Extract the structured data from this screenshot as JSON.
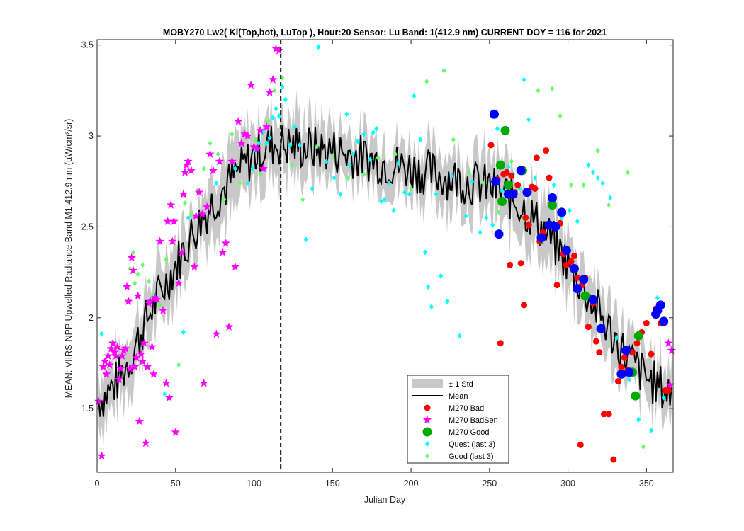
{
  "chart_data": {
    "type": "scatter",
    "title": "MOBY270   Lw2( Kl(Top,bot), LuTop ),   Hour:20 Sensor: Lu Band: 1(412.9 nm)   CURRENT DOY = 116 for 2021",
    "xlabel": "Julian Day",
    "ylabel": "MEAN: VIIRS-NPP Upwelled Radiance Band M1 412.9 nm (µW/cm²/sr)",
    "xlim": [
      0,
      367
    ],
    "ylim": [
      1.15,
      3.53
    ],
    "xticks": [
      0,
      50,
      100,
      150,
      200,
      250,
      300,
      350
    ],
    "yticks": [
      1.5,
      2,
      2.5,
      3,
      3.5
    ],
    "xtick_labels": [
      "0",
      "50",
      "100",
      "150",
      "200",
      "250",
      "300",
      "350"
    ],
    "ytick_labels": [
      "1.5",
      "2",
      "2.5",
      "3",
      "3.5"
    ],
    "grid": false,
    "legend_position": "bottom-center",
    "current_doy_line": 117,
    "colors": {
      "std_band": "#c8c8c8",
      "mean_line": "#000000",
      "bad": "#ff0000",
      "badsen": "#ff00ff",
      "good": "#00aa00",
      "quest_last3": "#00ffff",
      "good_last3": "#66ff66",
      "recent": "#0000ff"
    },
    "mean_profile": [
      [
        1,
        1.55
      ],
      [
        5,
        1.57
      ],
      [
        10,
        1.62
      ],
      [
        15,
        1.68
      ],
      [
        20,
        1.76
      ],
      [
        25,
        1.86
      ],
      [
        30,
        1.96
      ],
      [
        35,
        2.05
      ],
      [
        40,
        2.13
      ],
      [
        45,
        2.21
      ],
      [
        50,
        2.29
      ],
      [
        55,
        2.37
      ],
      [
        60,
        2.45
      ],
      [
        65,
        2.52
      ],
      [
        70,
        2.59
      ],
      [
        75,
        2.65
      ],
      [
        80,
        2.7
      ],
      [
        85,
        2.75
      ],
      [
        90,
        2.8
      ],
      [
        95,
        2.85
      ],
      [
        100,
        2.89
      ],
      [
        105,
        2.92
      ],
      [
        110,
        2.95
      ],
      [
        115,
        2.96
      ],
      [
        120,
        2.95
      ],
      [
        130,
        2.94
      ],
      [
        140,
        2.93
      ],
      [
        150,
        2.92
      ],
      [
        160,
        2.9
      ],
      [
        170,
        2.88
      ],
      [
        180,
        2.86
      ],
      [
        190,
        2.84
      ],
      [
        200,
        2.82
      ],
      [
        210,
        2.8
      ],
      [
        220,
        2.78
      ],
      [
        230,
        2.76
      ],
      [
        240,
        2.74
      ],
      [
        250,
        2.72
      ],
      [
        260,
        2.68
      ],
      [
        270,
        2.62
      ],
      [
        280,
        2.53
      ],
      [
        290,
        2.42
      ],
      [
        300,
        2.3
      ],
      [
        310,
        2.16
      ],
      [
        320,
        2.02
      ],
      [
        330,
        1.88
      ],
      [
        340,
        1.76
      ],
      [
        350,
        1.67
      ],
      [
        360,
        1.61
      ],
      [
        366,
        1.58
      ]
    ],
    "std_profile": [
      [
        1,
        0.14
      ],
      [
        30,
        0.15
      ],
      [
        60,
        0.15
      ],
      [
        90,
        0.17
      ],
      [
        110,
        0.18
      ],
      [
        130,
        0.16
      ],
      [
        150,
        0.14
      ],
      [
        170,
        0.13
      ],
      [
        200,
        0.13
      ],
      [
        230,
        0.15
      ],
      [
        250,
        0.17
      ],
      [
        270,
        0.17
      ],
      [
        290,
        0.16
      ],
      [
        310,
        0.16
      ],
      [
        330,
        0.15
      ],
      [
        350,
        0.14
      ],
      [
        366,
        0.14
      ]
    ],
    "series": [
      {
        "name": "M270 Bad",
        "marker": "circle-red",
        "x": [
          251,
          255,
          257,
          259,
          261,
          263,
          264,
          266,
          268,
          270,
          272,
          273,
          275,
          277,
          279,
          280,
          282,
          284,
          286,
          288,
          290,
          293,
          295,
          297,
          299,
          302,
          304,
          306,
          308,
          309,
          311,
          313,
          316,
          318,
          320,
          323,
          326,
          329,
          332,
          334,
          336,
          338,
          341,
          344,
          347,
          350,
          353,
          356,
          359,
          362,
          364
        ],
        "y": [
          2.95,
          2.76,
          1.86,
          2.79,
          2.8,
          2.29,
          2.78,
          2.69,
          2.73,
          2.3,
          2.07,
          2.55,
          2.51,
          2.72,
          2.71,
          2.88,
          2.42,
          2.47,
          2.92,
          2.77,
          2.63,
          2.18,
          2.52,
          2.35,
          2.29,
          2.31,
          2.34,
          2.22,
          1.3,
          2.18,
          2.22,
          1.95,
          2.08,
          1.87,
          1.81,
          1.47,
          1.47,
          1.22,
          1.65,
          1.73,
          1.78,
          1.71,
          1.81,
          1.86,
          1.92,
          1.97,
          1.8,
          2.05,
          1.97,
          1.6,
          1.6
        ]
      },
      {
        "name": "M270 BadSen",
        "marker": "star-magenta",
        "x": [
          1,
          3,
          4,
          5,
          6,
          7,
          8,
          9,
          10,
          11,
          12,
          13,
          14,
          15,
          16,
          17,
          18,
          19,
          20,
          21,
          22,
          23,
          24,
          25,
          26,
          27,
          28,
          29,
          30,
          31,
          32,
          33,
          34,
          35,
          36,
          37,
          38,
          40,
          42,
          44,
          45,
          46,
          47,
          48,
          49,
          50,
          52,
          54,
          55,
          56,
          57,
          58,
          60,
          62,
          63,
          65,
          67,
          68,
          70,
          72,
          74,
          76,
          78,
          80,
          82,
          84,
          86,
          88,
          90,
          92,
          94,
          96,
          98,
          100,
          102,
          104,
          106,
          108,
          110,
          112,
          114,
          116,
          364,
          365,
          366
        ],
        "y": [
          1.54,
          1.24,
          1.73,
          1.76,
          1.69,
          1.79,
          1.74,
          1.83,
          1.86,
          1.81,
          1.79,
          1.84,
          1.66,
          1.72,
          1.79,
          1.82,
          1.83,
          2.17,
          2.09,
          1.72,
          2.33,
          2.26,
          1.73,
          1.78,
          2.12,
          1.43,
          1.8,
          1.76,
          1.86,
          1.31,
          1.73,
          2.08,
          2.09,
          1.84,
          1.69,
          2.11,
          2.1,
          2.42,
          2.04,
          1.64,
          2.53,
          1.56,
          2.62,
          2.42,
          2.53,
          1.37,
          2.19,
          2.36,
          2.68,
          2.8,
          2.84,
          2.86,
          2.81,
          2.28,
          2.56,
          2.69,
          2.57,
          1.64,
          2.61,
          2.9,
          2.81,
          1.91,
          2.86,
          2.36,
          2.41,
          1.95,
          2.86,
          2.28,
          3.08,
          2.96,
          3.01,
          3.0,
          3.28,
          2.94,
          2.93,
          3.03,
          2.82,
          3.05,
          3.24,
          3.31,
          3.48,
          3.47,
          1.86,
          1.63,
          1.82
        ]
      },
      {
        "name": "M270 Good",
        "marker": "circle-green",
        "x": [
          257,
          258,
          260,
          262,
          271,
          290,
          311,
          341,
          343,
          345
        ],
        "y": [
          2.84,
          2.64,
          3.03,
          2.73,
          2.81,
          2.62,
          2.12,
          1.7,
          1.57,
          1.9
        ]
      },
      {
        "name": "Quest (last 3)",
        "marker": "diamond-cyan",
        "x": [
          3,
          43,
          55,
          58,
          76,
          88,
          96,
          99,
          101,
          103,
          106,
          108,
          110,
          112,
          114,
          116,
          118,
          120,
          123,
          126,
          129,
          133,
          137,
          141,
          146,
          151,
          155,
          159,
          161,
          163,
          166,
          170,
          174,
          176,
          178,
          181,
          183,
          186,
          189,
          192,
          196,
          199,
          202,
          206,
          209,
          211,
          213,
          216,
          219,
          223,
          226,
          231,
          235,
          239,
          244,
          248,
          252,
          255,
          258,
          262,
          265,
          269,
          272,
          275,
          279,
          284,
          291,
          296,
          301,
          306,
          313,
          316,
          319,
          322,
          327,
          331,
          339,
          345,
          353,
          357,
          361
        ],
        "y": [
          1.91,
          1.58,
          1.92,
          2.55,
          2.74,
          2.82,
          2.74,
          2.82,
          2.92,
          2.96,
          3.02,
          2.96,
          2.99,
          3.1,
          3.15,
          3.11,
          3.27,
          3.2,
          2.95,
          3.05,
          2.95,
          2.43,
          2.71,
          3.49,
          2.86,
          2.77,
          2.68,
          3.12,
          2.84,
          2.9,
          2.97,
          3.01,
          2.87,
          3.02,
          3.04,
          2.64,
          2.65,
          2.74,
          2.59,
          2.85,
          2.69,
          2.68,
          3.22,
          2.98,
          2.36,
          2.17,
          2.06,
          2.68,
          2.23,
          2.09,
          2.78,
          1.9,
          2.56,
          2.75,
          2.47,
          2.55,
          2.51,
          3.04,
          2.7,
          2.83,
          2.79,
          2.71,
          3.31,
          3.09,
          2.77,
          2.42,
          2.73,
          2.55,
          2.59,
          2.53,
          2.84,
          2.8,
          2.77,
          2.74,
          2.66,
          1.89,
          1.66,
          1.44,
          1.38,
          2.11,
          1.56
        ]
      },
      {
        "name": "Good (last 3)",
        "marker": "diamond-green",
        "x": [
          21,
          23,
          24,
          26,
          29,
          33,
          36,
          40,
          44,
          52,
          56,
          60,
          64,
          68,
          72,
          77,
          81,
          86,
          91,
          96,
          101,
          104,
          109,
          113,
          118,
          124,
          131,
          140,
          150,
          160,
          170,
          179,
          190,
          200,
          210,
          221,
          227,
          237,
          246,
          256,
          264,
          272,
          281,
          290,
          295,
          302,
          310,
          319,
          326,
          338,
          348
        ],
        "y": [
          2.27,
          2.36,
          2.19,
          2.24,
          2.29,
          2.2,
          2.13,
          2.07,
          2.32,
          1.74,
          2.63,
          2.57,
          2.7,
          2.82,
          2.96,
          2.9,
          2.65,
          3.01,
          2.74,
          3.0,
          2.98,
          2.79,
          3.08,
          3.25,
          3.32,
          2.84,
          2.65,
          2.94,
          2.89,
          2.77,
          2.79,
          2.88,
          2.9,
          2.71,
          3.3,
          3.36,
          2.98,
          2.8,
          2.74,
          2.58,
          2.86,
          2.54,
          3.25,
          3.26,
          3.11,
          2.73,
          2.73,
          2.92,
          2.62,
          2.8,
          1.29
        ]
      },
      {
        "name": "",
        "marker": "circle-blue",
        "x": [
          253,
          254,
          256,
          262,
          265,
          270,
          274,
          283,
          288,
          290,
          292,
          296,
          299,
          304,
          306,
          310,
          316,
          321,
          334,
          337,
          339,
          356,
          357,
          359,
          361
        ],
        "y": [
          3.12,
          2.75,
          2.46,
          2.68,
          2.68,
          2.81,
          2.69,
          2.44,
          2.51,
          2.66,
          2.5,
          2.58,
          2.37,
          2.27,
          2.16,
          2.21,
          2.1,
          1.94,
          1.69,
          1.82,
          1.7,
          2.02,
          2.04,
          2.07,
          1.98
        ]
      }
    ],
    "legend": [
      {
        "label": "± 1 Std",
        "symbol": "patch"
      },
      {
        "label": "Mean",
        "symbol": "line"
      },
      {
        "label": "M270 Bad",
        "symbol": "circle-red"
      },
      {
        "label": "M270 BadSen",
        "symbol": "star-magenta"
      },
      {
        "label": "M270 Good",
        "symbol": "circle-green"
      },
      {
        "label": "Quest (last 3)",
        "symbol": "diamond-cyan"
      },
      {
        "label": "Good (last 3)",
        "symbol": "diamond-green"
      }
    ]
  }
}
